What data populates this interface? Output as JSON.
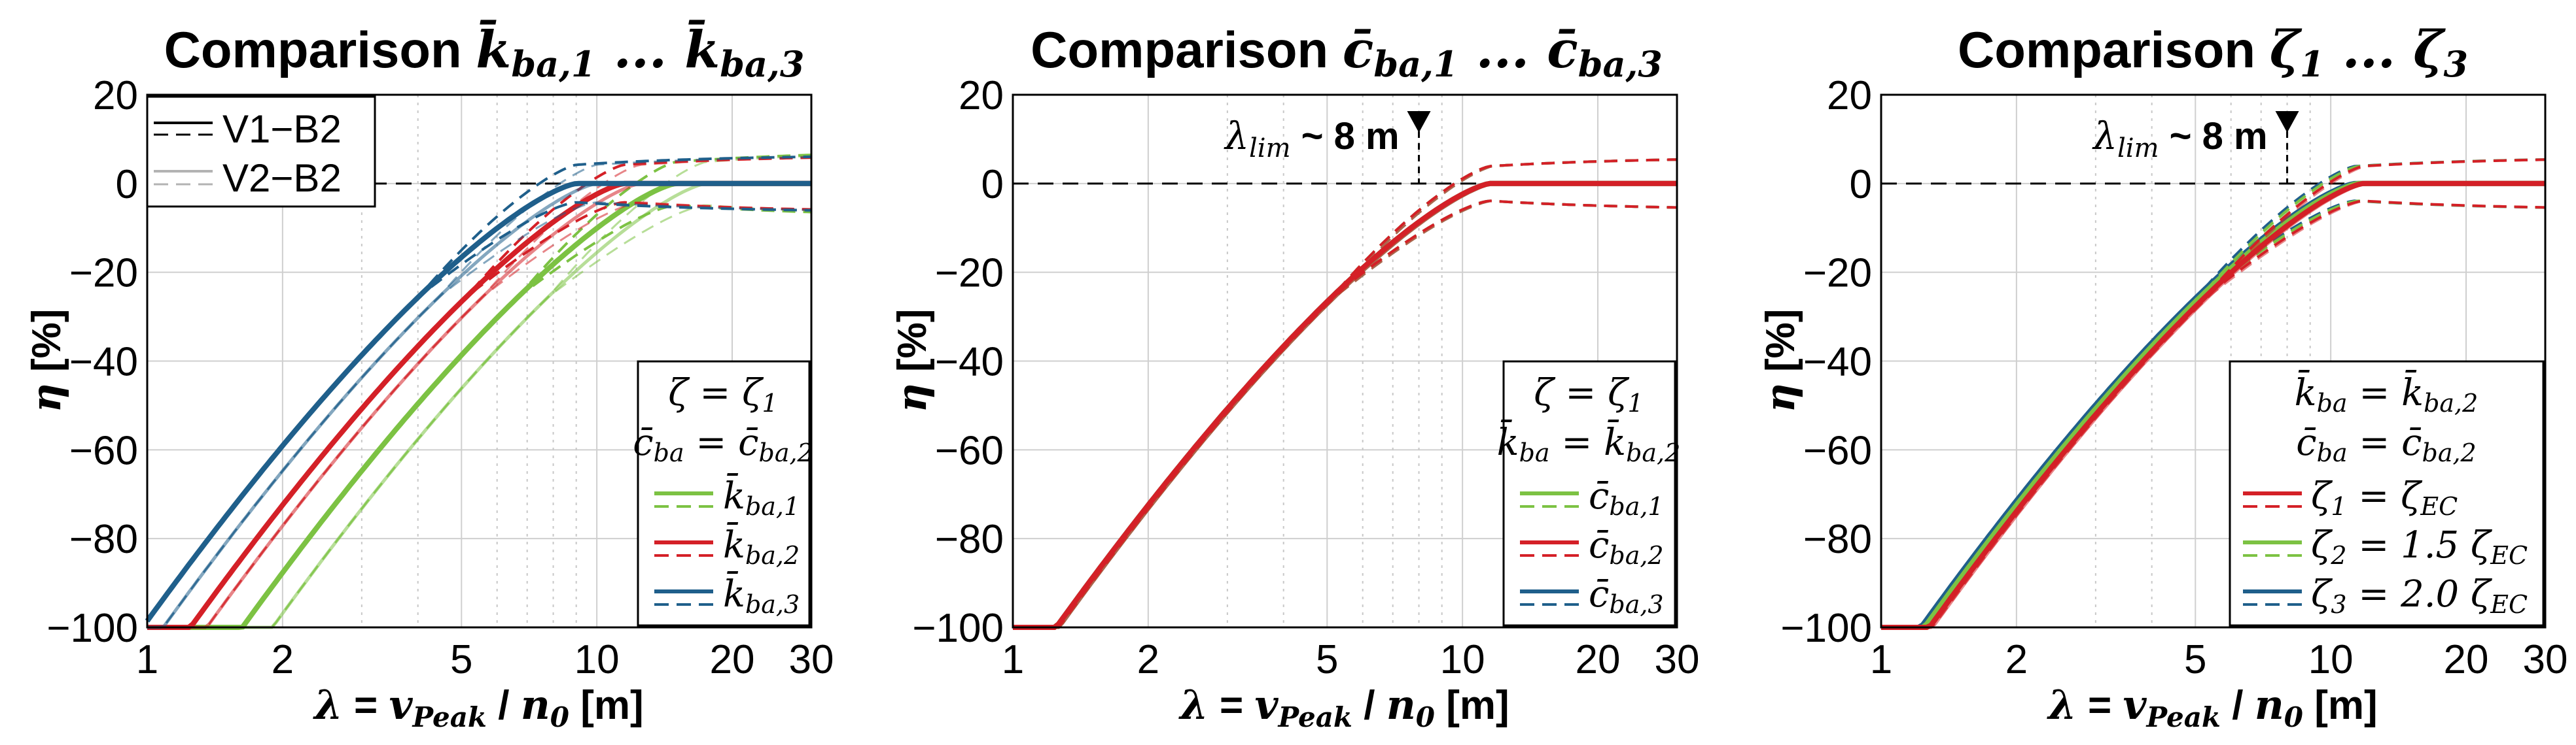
{
  "chart_data": [
    {
      "type": "line",
      "title": "Comparison k̄ba,1 ... k̄ba,3",
      "title_prefix": "Comparison",
      "title_math": "k̄ba,1 ... k̄ba,3",
      "xlabel": "λ = vPeak / n0 [m]",
      "ylabel": "η [%]",
      "x_scale": "log",
      "xlim": [
        1,
        30
      ],
      "ylim": [
        -100,
        20
      ],
      "x_ticks": [
        1,
        2,
        5,
        10,
        20,
        30
      ],
      "x_tick_labels": [
        "1",
        "2",
        "5",
        "10",
        "20",
        "30"
      ],
      "y_ticks": [
        20,
        0,
        -20,
        -40,
        -60,
        -80,
        -100
      ],
      "y_tick_labels": [
        "20",
        "0",
        "−20",
        "−40",
        "−60",
        "−80",
        "−100"
      ],
      "grid": true,
      "reference_line": {
        "y": 0,
        "style": "dashed",
        "color": "#000000"
      },
      "style_legend": {
        "position": "top-left",
        "entries": [
          {
            "label": "V1−B2",
            "style": "solid+dashed",
            "color": "#000000"
          },
          {
            "label": "V2−B2",
            "style": "solid+dashed",
            "color": "#b3b3b3"
          }
        ]
      },
      "param_legend": {
        "position": "bottom-right",
        "header": [
          "ζ = ζ1",
          "c̄ba = c̄ba,2"
        ],
        "entries": [
          {
            "label": "k̄ba,1",
            "color": "#7cc243"
          },
          {
            "label": "k̄ba,2",
            "color": "#d42027"
          },
          {
            "label": "k̄ba,3",
            "color": "#1f5f8b"
          }
        ]
      },
      "series": [
        {
          "name": "k̄ba,1",
          "color": "#7cc243",
          "sat_lambda_v1": 15.0,
          "sat_lambda_v2": 17.5,
          "band": 7.5
        },
        {
          "name": "k̄ba,2",
          "color": "#d42027",
          "sat_lambda_v1": 11.5,
          "sat_lambda_v2": 12.5,
          "band": 6.5
        },
        {
          "name": "k̄ba,3",
          "color": "#1f5f8b",
          "sat_lambda_v1": 9.0,
          "sat_lambda_v2": 10.0,
          "band": 6.5
        }
      ]
    },
    {
      "type": "line",
      "title": "Comparison c̄ba,1 ... c̄ba,3",
      "title_prefix": "Comparison",
      "title_math": "c̄ba,1 ... c̄ba,3",
      "xlabel": "λ = vPeak / n0 [m]",
      "ylabel": "η [%]",
      "x_scale": "log",
      "xlim": [
        1,
        30
      ],
      "ylim": [
        -100,
        20
      ],
      "x_ticks": [
        1,
        2,
        5,
        10,
        20,
        30
      ],
      "x_tick_labels": [
        "1",
        "2",
        "5",
        "10",
        "20",
        "30"
      ],
      "y_ticks": [
        20,
        0,
        -20,
        -40,
        -60,
        -80,
        -100
      ],
      "y_tick_labels": [
        "20",
        "0",
        "−20",
        "−40",
        "−60",
        "−80",
        "−100"
      ],
      "grid": true,
      "reference_line": {
        "y": 0,
        "style": "dashed",
        "color": "#000000"
      },
      "annotation": {
        "label": "λlim ~ 8 m",
        "lambda": 8
      },
      "param_legend": {
        "position": "bottom-right",
        "header": [
          "ζ = ζ1",
          "k̄ba = k̄ba,2"
        ],
        "entries": [
          {
            "label": "c̄ba,1",
            "color": "#7cc243"
          },
          {
            "label": "c̄ba,2",
            "color": "#d42027"
          },
          {
            "label": "c̄ba,3",
            "color": "#1f5f8b"
          }
        ]
      },
      "series": [
        {
          "name": "c̄ba,3",
          "color": "#1f5f8b",
          "sat_lambda_v1": 11.5,
          "sat_lambda_v2": 11.7,
          "band": 6.0
        },
        {
          "name": "c̄ba,1",
          "color": "#7cc243",
          "sat_lambda_v1": 11.5,
          "sat_lambda_v2": 11.7,
          "band": 6.0
        },
        {
          "name": "c̄ba,2",
          "color": "#d42027",
          "sat_lambda_v1": 11.5,
          "sat_lambda_v2": 11.7,
          "band": 6.0
        }
      ]
    },
    {
      "type": "line",
      "title": "Comparison ζ1 ... ζ3",
      "title_prefix": "Comparison",
      "title_math": "ζ1 ... ζ3",
      "xlabel": "λ = vPeak / n0 [m]",
      "ylabel": "η [%]",
      "x_scale": "log",
      "xlim": [
        1,
        30
      ],
      "ylim": [
        -100,
        20
      ],
      "x_ticks": [
        1,
        2,
        5,
        10,
        20,
        30
      ],
      "x_tick_labels": [
        "1",
        "2",
        "5",
        "10",
        "20",
        "30"
      ],
      "y_ticks": [
        20,
        0,
        -20,
        -40,
        -60,
        -80,
        -100
      ],
      "y_tick_labels": [
        "20",
        "0",
        "−20",
        "−40",
        "−60",
        "−80",
        "−100"
      ],
      "grid": true,
      "reference_line": {
        "y": 0,
        "style": "dashed",
        "color": "#000000"
      },
      "annotation": {
        "label": "λlim ~ 8 m",
        "lambda": 8
      },
      "param_legend": {
        "position": "bottom-right",
        "header": [
          "k̄ba = k̄ba,2",
          "c̄ba = c̄ba,2"
        ],
        "entries": [
          {
            "label": "ζ1 = ζEC",
            "color": "#d42027"
          },
          {
            "label": "ζ2 = 1.5 ζEC",
            "color": "#7cc243"
          },
          {
            "label": "ζ3 = 2.0 ζEC",
            "color": "#1f5f8b"
          }
        ]
      },
      "series": [
        {
          "name": "ζ3 = 2.0 ζEC",
          "color": "#1f5f8b",
          "sat_lambda_v1": 11.3,
          "sat_lambda_v2": 11.5,
          "band": 6.0
        },
        {
          "name": "ζ2 = 1.5 ζEC",
          "color": "#7cc243",
          "sat_lambda_v1": 11.5,
          "sat_lambda_v2": 11.7,
          "band": 6.0
        },
        {
          "name": "ζ1 = ζEC",
          "color": "#d42027",
          "sat_lambda_v1": 11.8,
          "sat_lambda_v2": 12.0,
          "band": 6.0
        }
      ]
    }
  ]
}
